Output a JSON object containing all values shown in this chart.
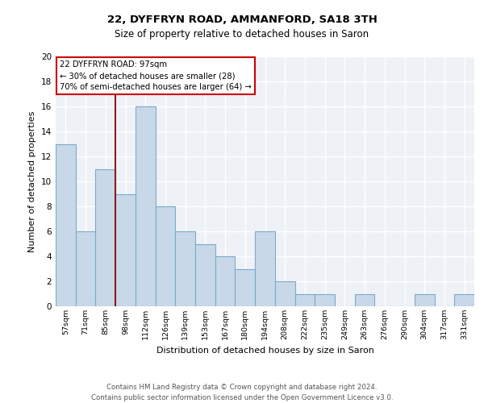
{
  "title_line1": "22, DYFFRYN ROAD, AMMANFORD, SA18 3TH",
  "title_line2": "Size of property relative to detached houses in Saron",
  "xlabel": "Distribution of detached houses by size in Saron",
  "ylabel": "Number of detached properties",
  "categories": [
    "57sqm",
    "71sqm",
    "85sqm",
    "98sqm",
    "112sqm",
    "126sqm",
    "139sqm",
    "153sqm",
    "167sqm",
    "180sqm",
    "194sqm",
    "208sqm",
    "222sqm",
    "235sqm",
    "249sqm",
    "263sqm",
    "276sqm",
    "290sqm",
    "304sqm",
    "317sqm",
    "331sqm"
  ],
  "values": [
    13,
    6,
    11,
    9,
    16,
    8,
    6,
    5,
    4,
    3,
    6,
    2,
    1,
    1,
    0,
    1,
    0,
    0,
    1,
    0,
    1
  ],
  "bar_color": "#c8d8e8",
  "bar_edge_color": "#7aaac8",
  "bar_linewidth": 0.8,
  "ylim": [
    0,
    20
  ],
  "yticks": [
    0,
    2,
    4,
    6,
    8,
    10,
    12,
    14,
    16,
    18,
    20
  ],
  "vline_color": "#8b1a1a",
  "vline_x": 2.5,
  "annotation_text": "22 DYFFRYN ROAD: 97sqm\n← 30% of detached houses are smaller (28)\n70% of semi-detached houses are larger (64) →",
  "annotation_box_color": "white",
  "annotation_box_edge": "#cc0000",
  "footer_text": "Contains HM Land Registry data © Crown copyright and database right 2024.\nContains public sector information licensed under the Open Government Licence v3.0.",
  "background_color": "#eef2f7"
}
